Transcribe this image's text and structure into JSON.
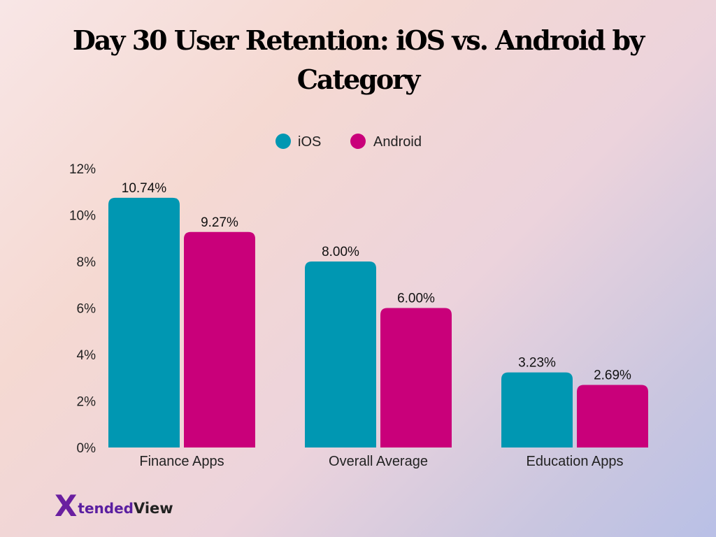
{
  "chart_data": {
    "type": "bar",
    "title": "Day 30 User Retention: iOS vs. Android by Category",
    "categories": [
      "Finance Apps",
      "Overall Average",
      "Education Apps"
    ],
    "series": [
      {
        "name": "iOS",
        "color": "#0097b2",
        "values": [
          10.74,
          8.0,
          3.23
        ],
        "labels": [
          "10.74%",
          "8.00%",
          "3.23%"
        ]
      },
      {
        "name": "Android",
        "color": "#c9007a",
        "values": [
          9.27,
          6.0,
          2.69
        ],
        "labels": [
          "9.27%",
          "6.00%",
          "2.69%"
        ]
      }
    ],
    "yticks": [
      "0%",
      "2%",
      "4%",
      "6%",
      "8%",
      "10%",
      "12%"
    ],
    "ylim": [
      0,
      12
    ],
    "grid": false,
    "legend": "top-center"
  },
  "brand": {
    "mark": "X",
    "word_1": "tended",
    "word_2": "View"
  }
}
